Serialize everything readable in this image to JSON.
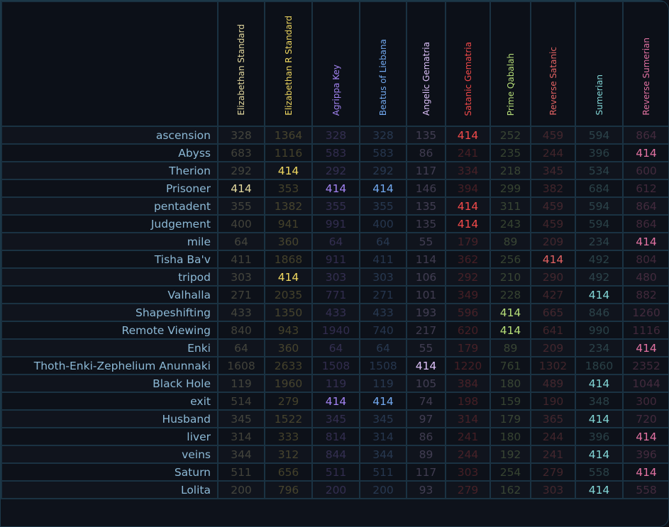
{
  "target_value": 414,
  "columns": [
    {
      "label": "Elizabethan Standard",
      "color": "#e6dba0"
    },
    {
      "label": "Elizabethan R Standard",
      "color": "#efd760"
    },
    {
      "label": "Agrippa Key",
      "color": "#a283f2"
    },
    {
      "label": "Beatus of Liebana",
      "color": "#72a9f0"
    },
    {
      "label": "Angelic Gematria",
      "color": "#dcc0f8"
    },
    {
      "label": "Satanic Gematria",
      "color": "#f24a4a"
    },
    {
      "label": "Prime Qabalah",
      "color": "#b6de78"
    },
    {
      "label": "Reverse Satanic",
      "color": "#e26262"
    },
    {
      "label": "Sumerian",
      "color": "#82d6d6"
    },
    {
      "label": "Reverse Sumerian",
      "color": "#e272a2"
    }
  ],
  "rows": [
    {
      "name": "ascension",
      "values": [
        328,
        1364,
        328,
        328,
        135,
        414,
        252,
        459,
        594,
        864
      ]
    },
    {
      "name": "Abyss",
      "values": [
        683,
        1116,
        583,
        583,
        86,
        241,
        235,
        244,
        396,
        414
      ]
    },
    {
      "name": "Therion",
      "values": [
        292,
        414,
        292,
        292,
        117,
        334,
        218,
        345,
        534,
        600
      ]
    },
    {
      "name": "Prisoner",
      "values": [
        414,
        353,
        414,
        414,
        146,
        394,
        299,
        382,
        684,
        612
      ]
    },
    {
      "name": "pentadent",
      "values": [
        355,
        1382,
        355,
        355,
        135,
        414,
        311,
        459,
        594,
        864
      ]
    },
    {
      "name": "Judgement",
      "values": [
        400,
        941,
        991,
        400,
        135,
        414,
        243,
        459,
        594,
        864
      ]
    },
    {
      "name": "mile",
      "values": [
        64,
        360,
        64,
        64,
        55,
        179,
        89,
        209,
        234,
        414
      ]
    },
    {
      "name": "Tisha Ba'v",
      "values": [
        411,
        1868,
        911,
        411,
        114,
        362,
        256,
        414,
        492,
        804
      ]
    },
    {
      "name": "tripod",
      "values": [
        303,
        414,
        303,
        303,
        106,
        292,
        210,
        290,
        492,
        480
      ]
    },
    {
      "name": "Valhalla",
      "values": [
        271,
        2035,
        771,
        271,
        101,
        349,
        228,
        427,
        414,
        882
      ]
    },
    {
      "name": "Shapeshifting",
      "values": [
        433,
        1350,
        433,
        433,
        193,
        596,
        414,
        665,
        846,
        1260
      ]
    },
    {
      "name": "Remote Viewing",
      "values": [
        840,
        943,
        1940,
        740,
        217,
        620,
        414,
        641,
        990,
        1116
      ]
    },
    {
      "name": "Enki",
      "values": [
        64,
        360,
        64,
        64,
        55,
        179,
        89,
        209,
        234,
        414
      ]
    },
    {
      "name": "Thoth-Enki-Zephelium Anunnaki",
      "values": [
        1608,
        2633,
        1508,
        1508,
        414,
        1220,
        761,
        1302,
        1860,
        2352
      ]
    },
    {
      "name": "Black Hole",
      "values": [
        119,
        1960,
        119,
        119,
        105,
        384,
        180,
        489,
        414,
        1044
      ]
    },
    {
      "name": "exit",
      "values": [
        514,
        279,
        414,
        414,
        74,
        198,
        159,
        190,
        348,
        300
      ]
    },
    {
      "name": "Husband",
      "values": [
        345,
        1522,
        345,
        345,
        97,
        314,
        179,
        365,
        414,
        720
      ]
    },
    {
      "name": "liver",
      "values": [
        314,
        333,
        814,
        314,
        86,
        241,
        180,
        244,
        396,
        414
      ]
    },
    {
      "name": "veins",
      "values": [
        344,
        312,
        844,
        344,
        89,
        244,
        192,
        241,
        414,
        396
      ]
    },
    {
      "name": "Saturn",
      "values": [
        511,
        656,
        511,
        511,
        117,
        303,
        254,
        279,
        558,
        414
      ]
    },
    {
      "name": "Lolita",
      "values": [
        200,
        796,
        200,
        200,
        93,
        279,
        162,
        303,
        414,
        558
      ]
    }
  ]
}
